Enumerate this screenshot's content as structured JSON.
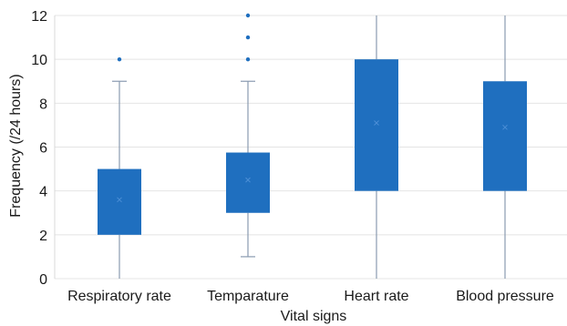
{
  "chart_data": {
    "type": "box",
    "xlabel": "Vital signs",
    "ylabel": "Frequency (/24 hours)",
    "ylim": [
      0,
      12
    ],
    "yticks": [
      0,
      2,
      4,
      6,
      8,
      10,
      12
    ],
    "grid": "horizontal",
    "box_color": "#1f6fbf",
    "categories": [
      "Respiratory rate",
      "Temparature",
      "Heart rate",
      "Blood pressure"
    ],
    "boxes": [
      {
        "min": 0,
        "q1": 2,
        "q3": 5,
        "max": 9,
        "mean": 3.6,
        "outliers": [
          10
        ]
      },
      {
        "min": 1,
        "q1": 3,
        "q3": 5.75,
        "max": 9,
        "mean": 4.5,
        "outliers": [
          10,
          11,
          12
        ]
      },
      {
        "min": 0,
        "q1": 4,
        "q3": 10,
        "max": 12,
        "mean": 7.1,
        "outliers": []
      },
      {
        "min": 0,
        "q1": 4,
        "q3": 9,
        "max": 12,
        "mean": 6.9,
        "outliers": []
      }
    ]
  }
}
